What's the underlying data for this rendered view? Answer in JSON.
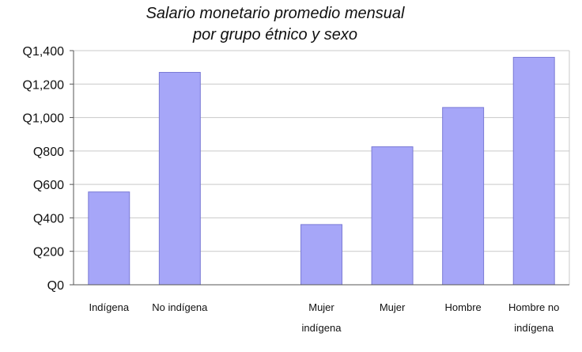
{
  "chart_data": {
    "type": "bar",
    "title_lines": [
      "Salario monetario promedio mensual",
      "por grupo étnico y sexo"
    ],
    "categories": [
      [
        "Indígena"
      ],
      [
        "No indígena"
      ],
      [],
      [
        "Mujer",
        "indígena"
      ],
      [
        "Mujer"
      ],
      [
        "Hombre"
      ],
      [
        "Hombre no",
        "indígena"
      ]
    ],
    "values": [
      555,
      1270,
      null,
      360,
      825,
      1060,
      1360
    ],
    "ylim": [
      0,
      1400
    ],
    "yticks": [
      0,
      200,
      400,
      600,
      800,
      1000,
      1200,
      1400
    ],
    "ytick_labels": [
      "Q0",
      "Q200",
      "Q400",
      "Q600",
      "Q800",
      "Q1,000",
      "Q1,200",
      "Q1,400"
    ],
    "xlabel": "",
    "ylabel": "",
    "grid": true,
    "bar_color": "#a6a6f8"
  }
}
